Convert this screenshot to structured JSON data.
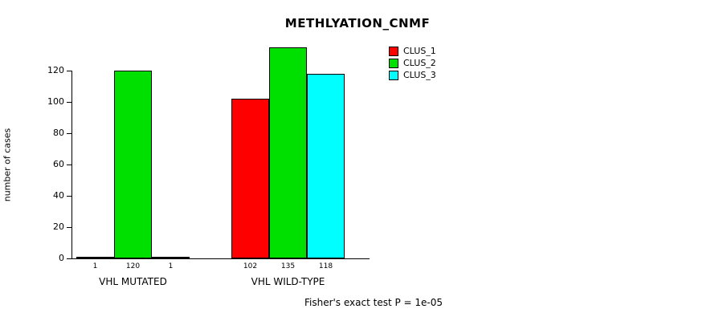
{
  "title": "METHLYATION_CNMF",
  "y_axis": {
    "label": "number of cases",
    "ticks": [
      0,
      20,
      40,
      60,
      80,
      100,
      120
    ]
  },
  "legend": {
    "items": [
      {
        "label": "CLUS_1",
        "color": "#ff0000"
      },
      {
        "label": "CLUS_2",
        "color": "#00e000"
      },
      {
        "label": "CLUS_3",
        "color": "#00ffff"
      }
    ]
  },
  "footer": "Fisher's exact test P = 1e-05",
  "chart_data": {
    "type": "bar",
    "title": "METHLYATION_CNMF",
    "xlabel": "",
    "ylabel": "number of cases",
    "categories": [
      "VHL MUTATED",
      "VHL WILD-TYPE"
    ],
    "series": [
      {
        "name": "CLUS_1",
        "color": "#ff0000",
        "values": [
          1,
          102
        ]
      },
      {
        "name": "CLUS_2",
        "color": "#00e000",
        "values": [
          120,
          135
        ]
      },
      {
        "name": "CLUS_3",
        "color": "#00ffff",
        "values": [
          1,
          118
        ]
      }
    ],
    "yticks": [
      0,
      20,
      40,
      60,
      80,
      100,
      120
    ],
    "ylim": [
      0,
      138
    ],
    "grid": false,
    "bar_value_labels": true,
    "legend_position": "top-right",
    "annotation": "Fisher's exact test P = 1e-05"
  }
}
